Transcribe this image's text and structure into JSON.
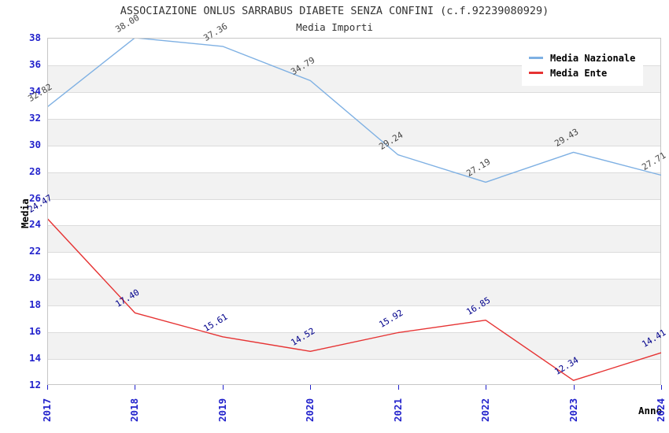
{
  "title": "ASSOCIAZIONE ONLUS SARRABUS DIABETE SENZA CONFINI (c.f.92239080929)",
  "subtitle": "Media Importi",
  "axes": {
    "y_label": "Media",
    "x_label": "Anno",
    "tick_color": "#2323cc"
  },
  "legend": {
    "items": [
      {
        "label": "Media Nazionale",
        "color": "#7eb0e3"
      },
      {
        "label": "Media Ente",
        "color": "#e63333"
      }
    ]
  },
  "chart_data": {
    "type": "line",
    "title": "ASSOCIAZIONE ONLUS SARRABUS DIABETE SENZA CONFINI (c.f.92239080929)",
    "subtitle": "Media Importi",
    "xlabel": "Anno",
    "ylabel": "Media",
    "x": [
      "2017",
      "2018",
      "2019",
      "2020",
      "2021",
      "2022",
      "2023",
      "2024"
    ],
    "series": [
      {
        "name": "Media Nazionale",
        "color": "#7eb0e3",
        "label_color": "#474747",
        "values": [
          32.82,
          38.0,
          37.36,
          34.79,
          29.24,
          27.19,
          29.43,
          27.71
        ]
      },
      {
        "name": "Media Ente",
        "color": "#e63333",
        "label_color": "#00008b",
        "values": [
          24.47,
          17.4,
          15.61,
          14.52,
          15.92,
          16.85,
          12.34,
          14.41
        ]
      }
    ],
    "ylim": [
      12,
      38
    ],
    "y_tick_step": 2,
    "grid": "horizontal",
    "alternating_bands": true,
    "band_color": "#f2f2f2",
    "legend_position": "top-right",
    "point_labels_decimals": 2
  }
}
